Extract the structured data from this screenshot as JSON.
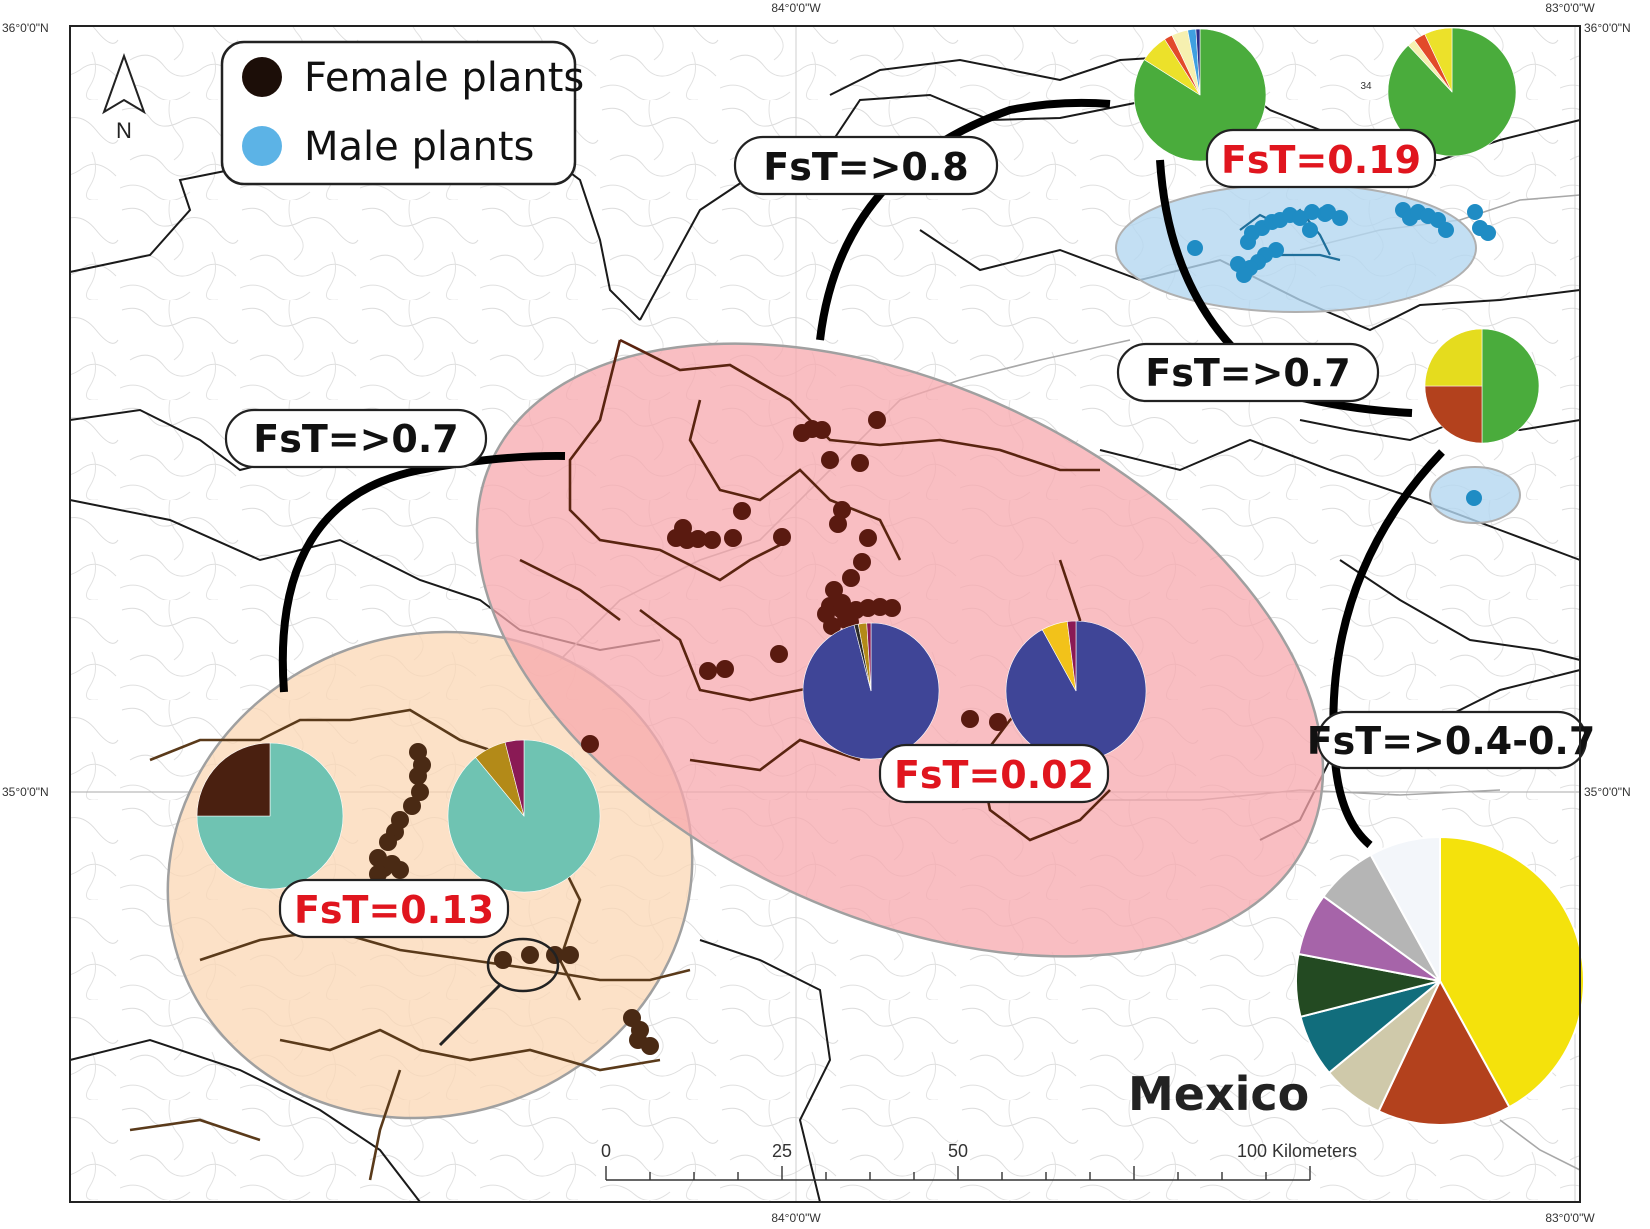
{
  "coordinates": {
    "top_left_lat": "36°0'0\"N",
    "top_right_lat": "36°0'0\"N",
    "mid_left_lat": "35°0'0\"N",
    "mid_right_lat": "35°0'0\"N",
    "top_lon_1": "84°0'0\"W",
    "top_lon_2": "83°0'0\"W",
    "bottom_lon_1": "84°0'0\"W",
    "bottom_lon_2": "83°0'0\"W"
  },
  "north_arrow": {
    "label": "N"
  },
  "legend": {
    "items": [
      {
        "label": "Female plants",
        "color": "#1c0e08"
      },
      {
        "label": "Male plants",
        "color": "#5cb3e6"
      }
    ]
  },
  "fst_labels": {
    "top_center": "FsT=>0.8",
    "left": "FsT=>0.7",
    "right_upper": "FsT=>0.7",
    "right_lower": "FsT=>0.4-0.7",
    "male_cluster": "FsT=0.19",
    "red_cluster": "FsT=0.02",
    "orange_cluster": "FsT=0.13"
  },
  "region_label": "Mexico",
  "small_label": "34",
  "scale_bar": {
    "ticks": [
      "0",
      "25",
      "50"
    ],
    "end_label": "100 Kilometers"
  },
  "colors": {
    "female_dot": "#5a1a10",
    "male_dot": "#1f8cc4",
    "red_zone": "#f7a8ad",
    "orange_zone": "#fbd7b4",
    "blue_zone": "#b4d7f0",
    "teal": "#6fc3b2",
    "navy": "#3f4597",
    "green": "#4aac3c",
    "yellow": "#f3e020"
  },
  "pie_charts": [
    {
      "name": "male-pie-left",
      "slices": [
        {
          "value": 84,
          "color": "#4aac3c"
        },
        {
          "value": 7,
          "color": "#ece12a"
        },
        {
          "value": 2,
          "color": "#e24a2a"
        },
        {
          "value": 4,
          "color": "#f6f0b0"
        },
        {
          "value": 2,
          "color": "#3fa0e0"
        },
        {
          "value": 1,
          "color": "#2b2f8a"
        }
      ]
    },
    {
      "name": "male-pie-right",
      "slices": [
        {
          "value": 88,
          "color": "#4aac3c"
        },
        {
          "value": 2,
          "color": "#f6f0b0"
        },
        {
          "value": 3,
          "color": "#e24a2a"
        },
        {
          "value": 7,
          "color": "#ece12a"
        }
      ]
    },
    {
      "name": "east-pie",
      "slices": [
        {
          "value": 50,
          "color": "#4aac3c"
        },
        {
          "value": 25,
          "color": "#b3411d"
        },
        {
          "value": 25,
          "color": "#e5dc1e"
        }
      ]
    },
    {
      "name": "red-pie-left",
      "slices": [
        {
          "value": 96,
          "color": "#3f4597"
        },
        {
          "value": 1,
          "color": "#2b2b2b"
        },
        {
          "value": 2,
          "color": "#b38a18"
        },
        {
          "value": 1,
          "color": "#8a1a55"
        }
      ]
    },
    {
      "name": "red-pie-right",
      "slices": [
        {
          "value": 92,
          "color": "#3f4597"
        },
        {
          "value": 6,
          "color": "#f2c21a"
        },
        {
          "value": 2,
          "color": "#8a1a55"
        }
      ]
    },
    {
      "name": "orange-pie-left",
      "slices": [
        {
          "value": 75,
          "color": "#6fc3b2"
        },
        {
          "value": 25,
          "color": "#4a2010"
        }
      ]
    },
    {
      "name": "orange-pie-right",
      "slices": [
        {
          "value": 89,
          "color": "#6fc3b2"
        },
        {
          "value": 7,
          "color": "#b38a18"
        },
        {
          "value": 4,
          "color": "#8a1a55"
        }
      ]
    },
    {
      "name": "mexico-pie",
      "slices": [
        {
          "value": 42,
          "color": "#f4e20c"
        },
        {
          "value": 15,
          "color": "#b3411d"
        },
        {
          "value": 7,
          "color": "#cfc9aa"
        },
        {
          "value": 7,
          "color": "#116d7c"
        },
        {
          "value": 7,
          "color": "#234a22"
        },
        {
          "value": 7,
          "color": "#a664a9"
        },
        {
          "value": 7,
          "color": "#b5b5b5"
        },
        {
          "value": 8,
          "color": "#f3f6fa"
        }
      ]
    }
  ]
}
